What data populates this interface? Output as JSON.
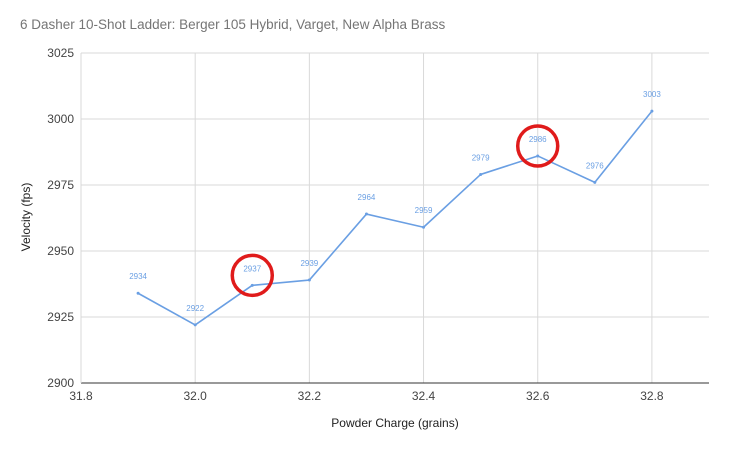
{
  "chart_data": {
    "type": "line",
    "title": "6 Dasher 10-Shot Ladder: Berger 105 Hybrid, Varget, New Alpha Brass",
    "xlabel": "Powder Charge (grains)",
    "ylabel": "Velocity (fps)",
    "xlim": [
      31.8,
      32.9
    ],
    "ylim": [
      2900,
      3025
    ],
    "x_ticks": [
      "31.8",
      "32.0",
      "32.2",
      "32.4",
      "32.6",
      "32.8"
    ],
    "y_ticks": [
      "2900",
      "2925",
      "2950",
      "2975",
      "3000",
      "3025"
    ],
    "grid": true,
    "legend": "none",
    "line_color": "#6a9fe3",
    "highlight_color": "#e01b1b",
    "highlighted_x": [
      32.1,
      32.6
    ],
    "series": [
      {
        "x": [
          31.9,
          32.0,
          32.1,
          32.2,
          32.3,
          32.4,
          32.5,
          32.6,
          32.7,
          32.8
        ],
        "values": [
          2934,
          2922,
          2937,
          2939,
          2964,
          2959,
          2979,
          2986,
          2976,
          3003
        ],
        "labels": [
          "2934",
          "2922",
          "2937",
          "2939",
          "2964",
          "2959",
          "2979",
          "2986",
          "2976",
          "3003"
        ]
      }
    ]
  }
}
